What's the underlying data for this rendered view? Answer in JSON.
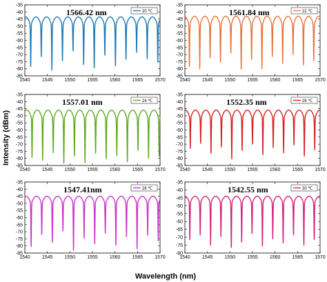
{
  "figure": {
    "ylabel": "Intensity (dBm)",
    "xlabel": "Wavelength (nm)"
  },
  "chart_data": [
    {
      "type": "line",
      "annotation": "1566.42 nm",
      "legend": "20 ℃",
      "color": "#1f77b4",
      "xlim": [
        1540,
        1570
      ],
      "ylim": [
        -85,
        -35
      ],
      "xticks": [
        "1540",
        "1545",
        "1550",
        "1555",
        "1560",
        "1565",
        "1570"
      ],
      "yticks": [
        "-35",
        "-40",
        "-45",
        "-50",
        "-55",
        "-60",
        "-65",
        "-70",
        "-75",
        "-80",
        "-85"
      ],
      "series": [
        {
          "fsr": 2.35,
          "phase": 1541.3,
          "peak": -43.5,
          "floor": -51.5,
          "nulls": [
            -79,
            -72,
            -81,
            -75,
            -68,
            -77,
            -80,
            -71,
            -78,
            -74,
            -69,
            -73,
            -76
          ]
        }
      ]
    },
    {
      "type": "line",
      "annotation": "1561.84 nm",
      "legend": "22 ℃",
      "color": "#e8743b",
      "xlim": [
        1540,
        1570
      ],
      "ylim": [
        -85,
        -35
      ],
      "xticks": [
        "1540",
        "1545",
        "1550",
        "1555",
        "1560",
        "1565",
        "1570"
      ],
      "yticks": [
        "-35",
        "-40",
        "-45",
        "-50",
        "-55",
        "-60",
        "-65",
        "-70",
        "-75",
        "-80",
        "-85"
      ],
      "series": [
        {
          "fsr": 2.3,
          "phase": 1541.0,
          "peak": -43.0,
          "floor": -52.0,
          "nulls": [
            -79,
            -80,
            -73,
            -76,
            -69,
            -81,
            -74,
            -80,
            -72,
            -77,
            -70,
            -78,
            -75
          ]
        }
      ]
    },
    {
      "type": "line",
      "annotation": "1557.01 nm",
      "legend": "24 ℃",
      "color": "#5aab1e",
      "xlim": [
        1540,
        1570
      ],
      "ylim": [
        -85,
        -35
      ],
      "xticks": [
        "1540",
        "1545",
        "1550",
        "1555",
        "1560",
        "1565",
        "1570"
      ],
      "yticks": [
        "-35",
        "-40",
        "-45",
        "-50",
        "-55",
        "-60",
        "-65",
        "-70",
        "-75",
        "-80",
        "-85"
      ],
      "series": [
        {
          "fsr": 2.35,
          "phase": 1541.6,
          "peak": -46.0,
          "floor": -55.0,
          "nulls": [
            -80,
            -82,
            -76,
            -84,
            -79,
            -83,
            -77,
            -81,
            -78,
            -83,
            -75,
            -80,
            -79
          ]
        }
      ]
    },
    {
      "type": "line",
      "annotation": "1552.35 nm",
      "legend": "26 ℃",
      "color": "#d62020",
      "xlim": [
        1540,
        1570
      ],
      "ylim": [
        -85,
        -35
      ],
      "xticks": [
        "1540",
        "1545",
        "1550",
        "1555",
        "1560",
        "1565",
        "1570"
      ],
      "yticks": [
        "-35",
        "-40",
        "-45",
        "-50",
        "-55",
        "-60",
        "-65",
        "-70",
        "-75",
        "-80",
        "-85"
      ],
      "series": [
        {
          "fsr": 2.3,
          "phase": 1541.2,
          "peak": -46.0,
          "floor": -54.0,
          "nulls": [
            -73,
            -70,
            -77,
            -72,
            -81,
            -75,
            -70,
            -78,
            -73,
            -76,
            -71,
            -79,
            -74
          ]
        }
      ]
    },
    {
      "type": "line",
      "annotation": "1547.41nm",
      "legend": "28 ℃",
      "color": "#cc33cc",
      "xlim": [
        1540,
        1570
      ],
      "ylim": [
        -85,
        -35
      ],
      "xticks": [
        "1540",
        "1545",
        "1550",
        "1555",
        "1560",
        "1565",
        "1570"
      ],
      "yticks": [
        "-35",
        "-40",
        "-45",
        "-50",
        "-55",
        "-60",
        "-65",
        "-70",
        "-75",
        "-80",
        "-85"
      ],
      "series": [
        {
          "fsr": 2.35,
          "phase": 1541.4,
          "peak": -45.0,
          "floor": -52.0,
          "nulls": [
            -81,
            -72,
            -78,
            -70,
            -83,
            -75,
            -79,
            -71,
            -80,
            -74,
            -82,
            -73,
            -77
          ]
        }
      ]
    },
    {
      "type": "line",
      "annotation": "1542.55 nm",
      "legend": "30 ℃",
      "color": "#d4237a",
      "xlim": [
        1540,
        1570
      ],
      "ylim": [
        -80,
        -35
      ],
      "xticks": [
        "1540",
        "1545",
        "1550",
        "1555",
        "1560",
        "1565",
        "1570"
      ],
      "yticks": [
        "-35",
        "-40",
        "-45",
        "-50",
        "-55",
        "-60",
        "-65",
        "-70",
        "-75",
        "-80"
      ],
      "series": [
        {
          "fsr": 2.3,
          "phase": 1541.1,
          "peak": -44.0,
          "floor": -50.0,
          "nulls": [
            -72,
            -69,
            -75,
            -70,
            -77,
            -73,
            -68,
            -76,
            -71,
            -74,
            -69,
            -75,
            -72
          ]
        }
      ]
    }
  ]
}
